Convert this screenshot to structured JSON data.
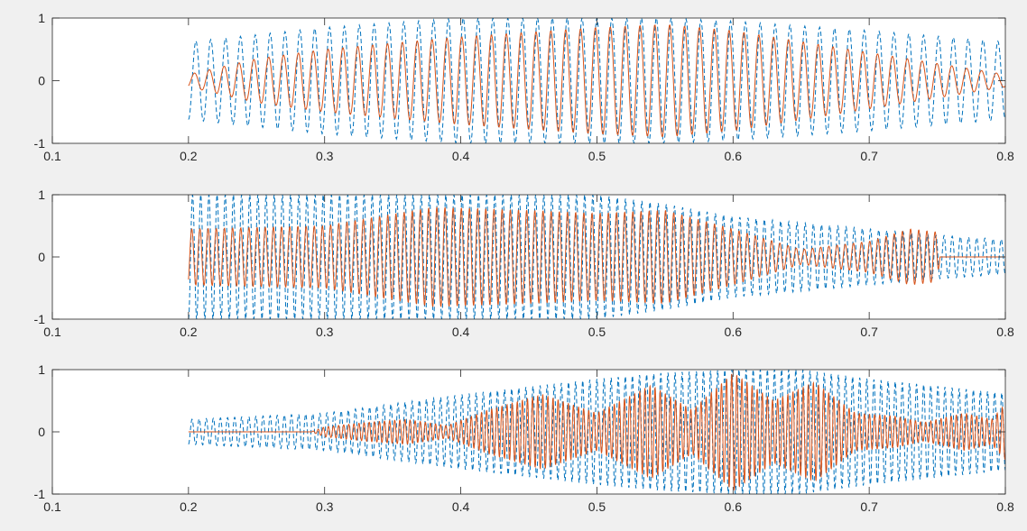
{
  "colors": {
    "background": "#f0f0f0",
    "axes_face": "#ffffff",
    "axes_edge": "#262626",
    "series_dashed": "#0072bd",
    "series_solid": "#d95319"
  },
  "chart_data": [
    {
      "type": "line",
      "title": "",
      "xlabel": "",
      "ylabel": "",
      "xlim": [
        0.1,
        0.8
      ],
      "ylim": [
        -1,
        1
      ],
      "xticks": [
        0.1,
        0.2,
        0.3,
        0.4,
        0.5,
        0.6,
        0.7,
        0.8
      ],
      "xtick_labels": [
        "0.1",
        "0.2",
        "0.3",
        "0.4",
        "0.5",
        "0.6",
        "0.7",
        "0.8"
      ],
      "yticks": [
        -1,
        0,
        1
      ],
      "ytick_labels": [
        "-1",
        "0",
        "1"
      ],
      "grid": false,
      "legend": "none",
      "series": [
        {
          "style": "dashed",
          "color": "#0072bd",
          "x_range": [
            0.2,
            0.8
          ],
          "cycles": 55,
          "envelope": {
            "x": [
              0.2,
              0.3,
              0.4,
              0.5,
              0.55,
              0.6,
              0.7,
              0.8
            ],
            "amplitude": [
              0.62,
              0.85,
              1.0,
              1.0,
              1.0,
              0.95,
              0.8,
              0.62
            ]
          }
        },
        {
          "style": "solid",
          "color": "#d95319",
          "x_range": [
            0.2,
            0.8
          ],
          "cycles": 55,
          "envelope": {
            "x": [
              0.2,
              0.25,
              0.3,
              0.4,
              0.5,
              0.55,
              0.6,
              0.7,
              0.8
            ],
            "amplitude": [
              0.1,
              0.35,
              0.5,
              0.7,
              0.85,
              0.9,
              0.8,
              0.45,
              0.1
            ]
          }
        }
      ]
    },
    {
      "type": "line",
      "title": "",
      "xlabel": "",
      "ylabel": "",
      "xlim": [
        0.1,
        0.8
      ],
      "ylim": [
        -1,
        1
      ],
      "xticks": [
        0.1,
        0.2,
        0.3,
        0.4,
        0.5,
        0.6,
        0.7,
        0.8
      ],
      "xtick_labels": [
        "0.1",
        "0.2",
        "0.3",
        "0.4",
        "0.5",
        "0.6",
        "0.7",
        "0.8"
      ],
      "yticks": [
        -1,
        0,
        1
      ],
      "ytick_labels": [
        "-1",
        "0",
        "1"
      ],
      "grid": false,
      "legend": "none",
      "series": [
        {
          "style": "dashed",
          "color": "#0072bd",
          "x_range": [
            0.2,
            0.8
          ],
          "cycles": 100,
          "envelope": {
            "x": [
              0.2,
              0.3,
              0.4,
              0.5,
              0.55,
              0.6,
              0.7,
              0.75,
              0.8
            ],
            "amplitude": [
              1.0,
              1.0,
              1.0,
              1.0,
              0.85,
              0.65,
              0.45,
              0.35,
              0.28
            ]
          }
        },
        {
          "style": "solid",
          "color": "#d95319",
          "x_range": [
            0.2,
            0.8
          ],
          "cycles": 100,
          "envelope": {
            "x": [
              0.2,
              0.3,
              0.38,
              0.45,
              0.5,
              0.55,
              0.6,
              0.65,
              0.7,
              0.73,
              0.75,
              0.752,
              0.8
            ],
            "amplitude": [
              0.45,
              0.5,
              0.8,
              0.75,
              0.7,
              0.75,
              0.45,
              0.12,
              0.25,
              0.45,
              0.4,
              0.0,
              0.0
            ]
          }
        }
      ]
    },
    {
      "type": "line",
      "title": "",
      "xlabel": "",
      "ylabel": "",
      "xlim": [
        0.1,
        0.8
      ],
      "ylim": [
        -1,
        1
      ],
      "xticks": [
        0.1,
        0.2,
        0.3,
        0.4,
        0.5,
        0.6,
        0.7,
        0.8
      ],
      "xtick_labels": [
        "0.1",
        "0.2",
        "0.3",
        "0.4",
        "0.5",
        "0.6",
        "0.7",
        "0.8"
      ],
      "yticks": [
        -1,
        0,
        1
      ],
      "ytick_labels": [
        "-1",
        "0",
        "1"
      ],
      "grid": false,
      "legend": "none",
      "series": [
        {
          "style": "dashed",
          "color": "#0072bd",
          "x_range": [
            0.2,
            0.8
          ],
          "cycles": 115,
          "envelope": {
            "x": [
              0.2,
              0.3,
              0.4,
              0.5,
              0.55,
              0.6,
              0.65,
              0.7,
              0.8
            ],
            "amplitude": [
              0.2,
              0.3,
              0.6,
              0.85,
              0.95,
              1.0,
              1.0,
              0.85,
              0.62
            ]
          }
        },
        {
          "style": "solid",
          "color": "#d95319",
          "x_range": [
            0.2,
            0.8
          ],
          "cycles": 160,
          "envelope": {
            "x": [
              0.2,
              0.29,
              0.3,
              0.33,
              0.36,
              0.39,
              0.42,
              0.46,
              0.5,
              0.54,
              0.57,
              0.6,
              0.63,
              0.66,
              0.69,
              0.72,
              0.74,
              0.77,
              0.79,
              0.8
            ],
            "amplitude": [
              0.0,
              0.0,
              0.08,
              0.15,
              0.2,
              0.1,
              0.35,
              0.6,
              0.3,
              0.75,
              0.35,
              0.95,
              0.5,
              0.8,
              0.3,
              0.25,
              0.15,
              0.3,
              0.2,
              0.45
            ]
          }
        }
      ]
    }
  ]
}
